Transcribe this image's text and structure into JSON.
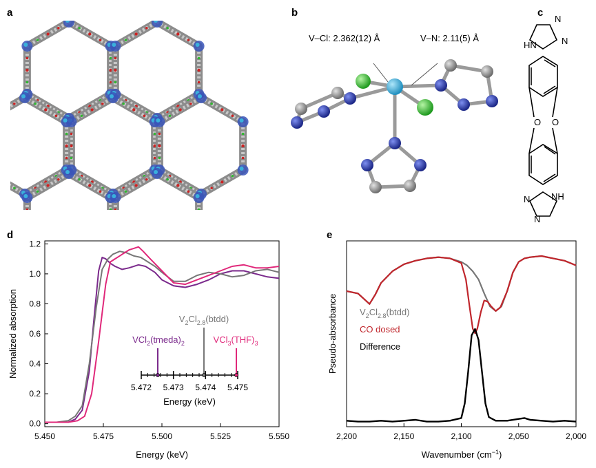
{
  "panels": {
    "a": "a",
    "b": "b",
    "c": "c",
    "d": "d",
    "e": "e"
  },
  "panel_b": {
    "label_vcl": "V–Cl: 2.362(12) Å",
    "label_vn": "V–N: 2.11(5) Å"
  },
  "panel_c": {
    "hn_label": "HN",
    "nh_label": "NH",
    "n_labels": [
      "N",
      "N",
      "N",
      "N"
    ],
    "o_labels": [
      "O",
      "O"
    ]
  },
  "colors": {
    "vanadium": "#3ab0dc",
    "chlorine": "#2fb82f",
    "nitrogen": "#2b3fb0",
    "carbon": "#8a8a8a",
    "oxygen": "#cc2222",
    "series_grey": "#777777",
    "series_purple": "#7b2a8c",
    "series_pink": "#e0287a",
    "co_red": "#c0262c",
    "difference": "#000000"
  },
  "chart_data": [
    {
      "type": "line",
      "panel": "d",
      "xlabel": "Energy (keV)",
      "ylabel": "Normalized absorption",
      "xlim": [
        5.45,
        5.55
      ],
      "ylim": [
        -0.02,
        1.22
      ],
      "x_ticks": [
        "5.450",
        "5.475",
        "5.500",
        "5.525",
        "5.550"
      ],
      "y_ticks": [
        "0.0",
        "0.2",
        "0.4",
        "0.6",
        "0.8",
        "1.0",
        "1.2"
      ],
      "series": [
        {
          "name": "VCl2(tmeda)2",
          "color_key": "series_purple",
          "x": [
            5.45,
            5.455,
            5.46,
            5.463,
            5.466,
            5.469,
            5.471,
            5.473,
            5.4745,
            5.476,
            5.478,
            5.48,
            5.483,
            5.486,
            5.49,
            5.493,
            5.497,
            5.5,
            5.505,
            5.51,
            5.515,
            5.52,
            5.525,
            5.53,
            5.535,
            5.54,
            5.545,
            5.55
          ],
          "y": [
            0.01,
            0.01,
            0.01,
            0.03,
            0.09,
            0.35,
            0.7,
            1.02,
            1.11,
            1.1,
            1.07,
            1.05,
            1.03,
            1.04,
            1.06,
            1.05,
            1.01,
            0.96,
            0.92,
            0.91,
            0.93,
            0.96,
            1.0,
            1.02,
            1.02,
            1.0,
            0.98,
            0.97
          ]
        },
        {
          "name": "V2Cl2.8(btdd)",
          "color_key": "series_grey",
          "x": [
            5.45,
            5.455,
            5.46,
            5.463,
            5.466,
            5.469,
            5.472,
            5.4745,
            5.477,
            5.479,
            5.482,
            5.485,
            5.488,
            5.491,
            5.494,
            5.497,
            5.5,
            5.505,
            5.51,
            5.515,
            5.52,
            5.525,
            5.53,
            5.535,
            5.54,
            5.545,
            5.55
          ],
          "y": [
            0.01,
            0.01,
            0.02,
            0.05,
            0.12,
            0.4,
            0.78,
            1.03,
            1.1,
            1.13,
            1.15,
            1.14,
            1.12,
            1.11,
            1.08,
            1.05,
            1.01,
            0.95,
            0.95,
            0.99,
            1.01,
            1.0,
            0.98,
            0.99,
            1.02,
            1.03,
            1.01
          ]
        },
        {
          "name": "VCl3(THF)3",
          "color_key": "series_pink",
          "x": [
            5.45,
            5.455,
            5.46,
            5.464,
            5.467,
            5.47,
            5.473,
            5.476,
            5.478,
            5.48,
            5.482,
            5.484,
            5.486,
            5.488,
            5.49,
            5.492,
            5.495,
            5.5,
            5.505,
            5.51,
            5.515,
            5.52,
            5.525,
            5.53,
            5.535,
            5.54,
            5.545,
            5.55
          ],
          "y": [
            0.01,
            0.01,
            0.01,
            0.02,
            0.05,
            0.2,
            0.55,
            0.93,
            1.08,
            1.1,
            1.12,
            1.14,
            1.16,
            1.17,
            1.18,
            1.15,
            1.1,
            1.02,
            0.94,
            0.93,
            0.96,
            0.99,
            1.02,
            1.05,
            1.06,
            1.04,
            1.04,
            1.05
          ]
        }
      ],
      "inset": {
        "xlabel": "Energy (keV)",
        "x_ticks": [
          "5.472",
          "5.473",
          "5.474",
          "5.475"
        ],
        "xlim": [
          5.472,
          5.475
        ],
        "markers": [
          {
            "label_main": "VCl",
            "sub1": "2",
            "label_mid": "(tmeda)",
            "sub2": "2",
            "value": 5.4725,
            "color_key": "series_purple"
          },
          {
            "label_main": "V",
            "sub1": "2",
            "label_mid": "Cl",
            "sub2": "2.8",
            "label_end": "(btdd)",
            "value": 5.4738,
            "color_key": "series_grey"
          },
          {
            "label_main": "VCl",
            "sub1": "3",
            "label_mid": "(THF)",
            "sub2": "3",
            "value": 5.4749,
            "color_key": "series_pink"
          }
        ]
      }
    },
    {
      "type": "line",
      "panel": "e",
      "xlabel_main": "Wavenumber (cm",
      "xlabel_sup": "−1",
      "xlabel_end": ")",
      "ylabel": "Pseudo-absorbance",
      "xlim": [
        2200,
        2000
      ],
      "x_ticks": [
        "2,200",
        "2,150",
        "2,100",
        "2,050",
        "2,000"
      ],
      "legend": [
        {
          "text_main": "V",
          "sub1": "2",
          "text_mid": "Cl",
          "sub2": "2.8",
          "text_end": "(btdd)",
          "color_key": "series_grey"
        },
        {
          "text_main": "CO dosed",
          "color_key": "co_red"
        },
        {
          "text_main": "Difference",
          "color_key": "difference"
        }
      ],
      "series": [
        {
          "name": "V2Cl2.8(btdd)",
          "color_key": "series_grey",
          "x": [
            2200,
            2190,
            2180,
            2175,
            2170,
            2160,
            2150,
            2140,
            2130,
            2120,
            2110,
            2100,
            2095,
            2090,
            2085,
            2080,
            2075,
            2070,
            2065,
            2060,
            2055,
            2050,
            2045,
            2040,
            2030,
            2020,
            2010,
            2000
          ],
          "y": [
            0.6,
            0.58,
            0.49,
            0.57,
            0.67,
            0.77,
            0.83,
            0.86,
            0.88,
            0.89,
            0.88,
            0.85,
            0.82,
            0.77,
            0.7,
            0.58,
            0.47,
            0.43,
            0.47,
            0.6,
            0.76,
            0.85,
            0.88,
            0.89,
            0.9,
            0.88,
            0.86,
            0.82
          ]
        },
        {
          "name": "CO dosed",
          "color_key": "co_red",
          "x": [
            2200,
            2190,
            2180,
            2175,
            2170,
            2160,
            2150,
            2140,
            2130,
            2120,
            2110,
            2100,
            2096,
            2093,
            2090,
            2088,
            2086,
            2083,
            2080,
            2077,
            2074,
            2070,
            2066,
            2060,
            2055,
            2050,
            2045,
            2040,
            2030,
            2020,
            2010,
            2000
          ],
          "y": [
            0.6,
            0.58,
            0.49,
            0.57,
            0.67,
            0.77,
            0.83,
            0.86,
            0.88,
            0.89,
            0.88,
            0.84,
            0.7,
            0.48,
            0.28,
            0.24,
            0.28,
            0.42,
            0.52,
            0.51,
            0.47,
            0.43,
            0.46,
            0.6,
            0.76,
            0.85,
            0.88,
            0.89,
            0.9,
            0.88,
            0.86,
            0.82
          ]
        },
        {
          "name": "Difference",
          "color_key": "difference",
          "x": [
            2200,
            2190,
            2180,
            2170,
            2160,
            2150,
            2140,
            2130,
            2120,
            2110,
            2100,
            2097,
            2094,
            2091,
            2088,
            2085,
            2082,
            2079,
            2076,
            2070,
            2060,
            2050,
            2045,
            2040,
            2030,
            2020,
            2010,
            2000
          ],
          "y": [
            -0.99,
            -1.0,
            -1.0,
            -0.99,
            -1.0,
            -0.99,
            -0.98,
            -1.0,
            -1.0,
            -0.99,
            -0.96,
            -0.8,
            -0.45,
            -0.05,
            0.02,
            -0.1,
            -0.45,
            -0.8,
            -0.95,
            -0.99,
            -0.99,
            -0.97,
            -0.96,
            -0.98,
            -0.99,
            -1.0,
            -0.99,
            -1.0
          ]
        }
      ]
    }
  ]
}
